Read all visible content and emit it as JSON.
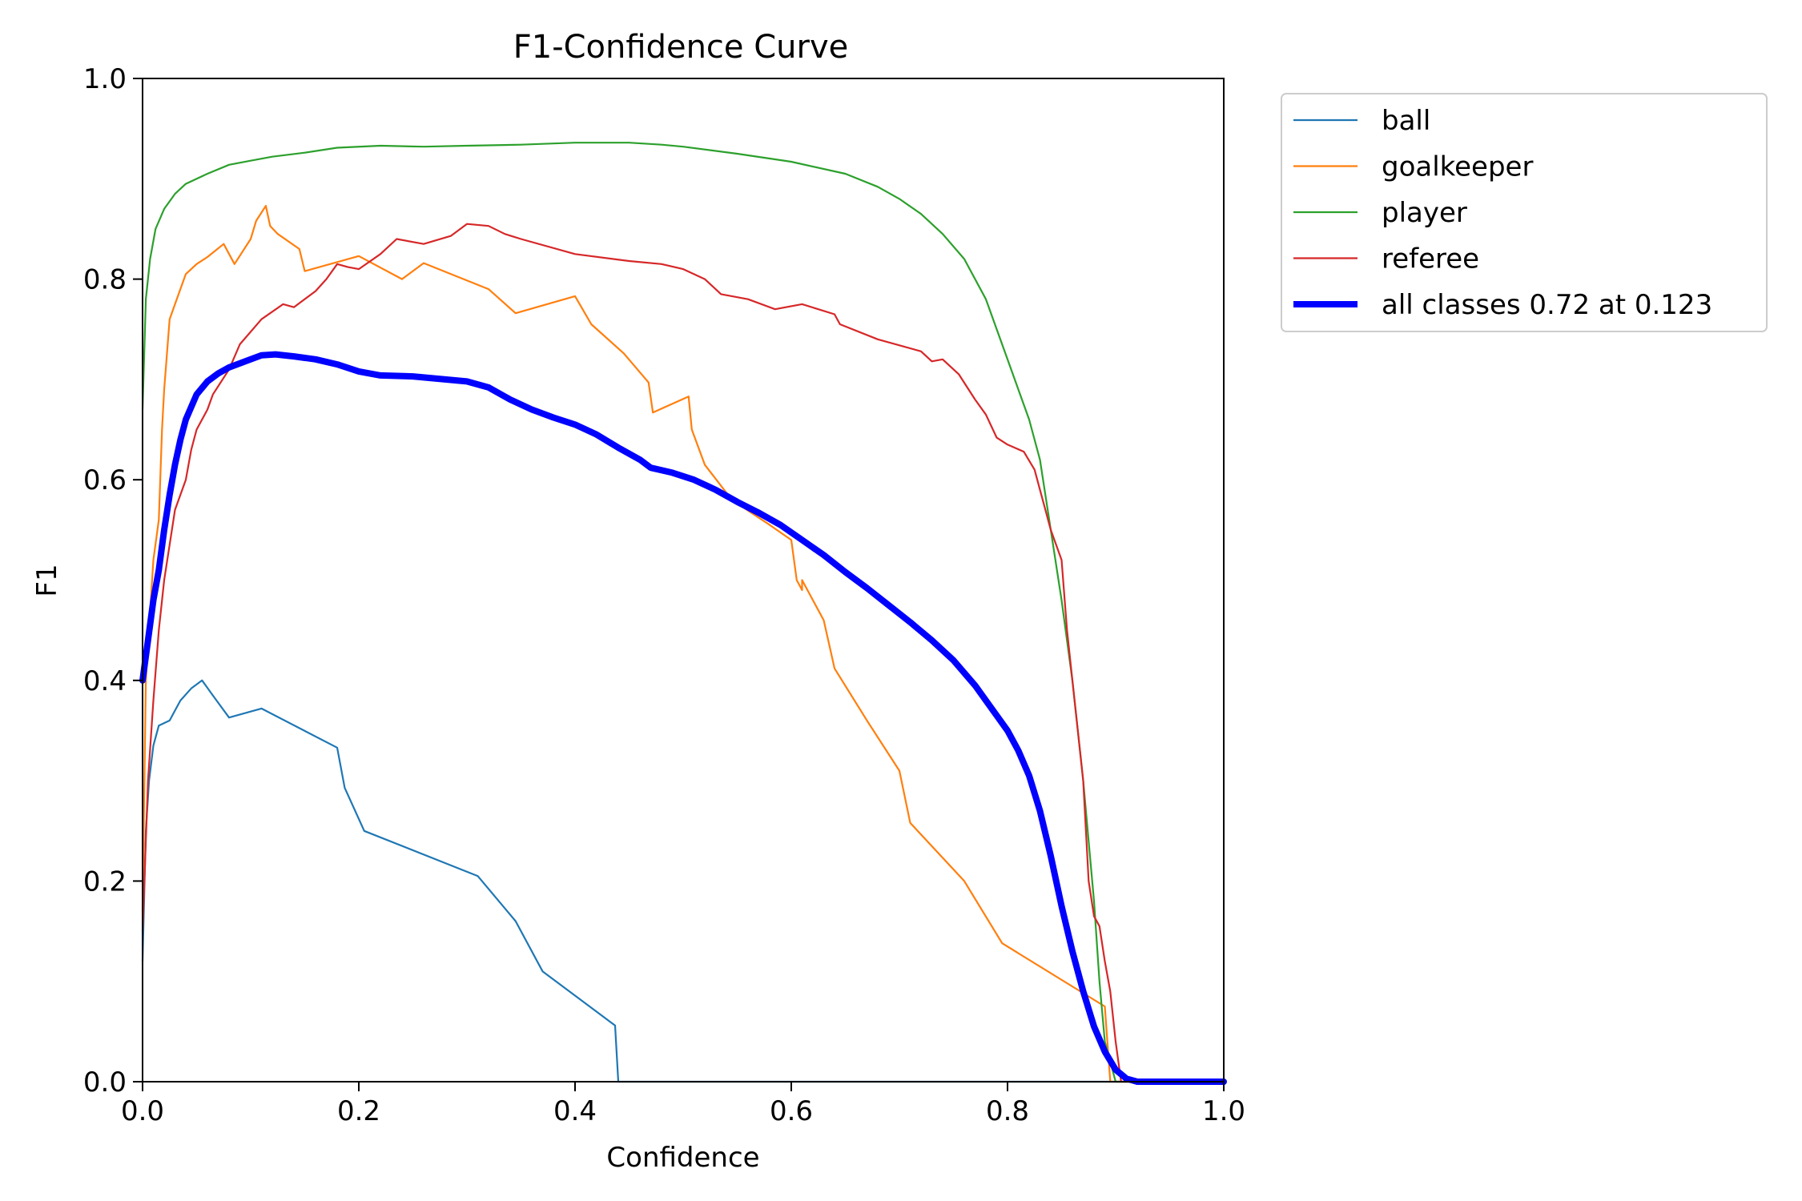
{
  "chart_data": {
    "type": "line",
    "title": "F1-Confidence Curve",
    "xlabel": "Confidence",
    "ylabel": "F1",
    "xlim": [
      0.0,
      1.0
    ],
    "ylim": [
      0.0,
      1.0
    ],
    "xticks": [
      "0.0",
      "0.2",
      "0.4",
      "0.6",
      "0.8",
      "1.0"
    ],
    "yticks": [
      "0.0",
      "0.2",
      "0.4",
      "0.6",
      "0.8",
      "1.0"
    ],
    "grid": false,
    "legend_position": "outside top-right",
    "series": [
      {
        "name": "ball",
        "color": "#1f77b4",
        "width": "thin",
        "points": [
          [
            0.0,
            0.12
          ],
          [
            0.003,
            0.25
          ],
          [
            0.006,
            0.3
          ],
          [
            0.01,
            0.335
          ],
          [
            0.015,
            0.355
          ],
          [
            0.025,
            0.36
          ],
          [
            0.03,
            0.37
          ],
          [
            0.035,
            0.38
          ],
          [
            0.045,
            0.392
          ],
          [
            0.055,
            0.4
          ],
          [
            0.065,
            0.385
          ],
          [
            0.08,
            0.363
          ],
          [
            0.11,
            0.372
          ],
          [
            0.18,
            0.333
          ],
          [
            0.187,
            0.293
          ],
          [
            0.205,
            0.25
          ],
          [
            0.31,
            0.205
          ],
          [
            0.345,
            0.16
          ],
          [
            0.37,
            0.11
          ],
          [
            0.437,
            0.056
          ],
          [
            0.44,
            0.0
          ],
          [
            0.895,
            0.0
          ],
          [
            1.0,
            0.0
          ]
        ]
      },
      {
        "name": "goalkeeper",
        "color": "#ff7f0e",
        "width": "thin",
        "points": [
          [
            0.0,
            0.17
          ],
          [
            0.003,
            0.4
          ],
          [
            0.01,
            0.52
          ],
          [
            0.015,
            0.56
          ],
          [
            0.018,
            0.65
          ],
          [
            0.02,
            0.69
          ],
          [
            0.025,
            0.76
          ],
          [
            0.03,
            0.775
          ],
          [
            0.04,
            0.805
          ],
          [
            0.05,
            0.815
          ],
          [
            0.06,
            0.822
          ],
          [
            0.075,
            0.835
          ],
          [
            0.085,
            0.815
          ],
          [
            0.1,
            0.84
          ],
          [
            0.105,
            0.858
          ],
          [
            0.114,
            0.873
          ],
          [
            0.118,
            0.853
          ],
          [
            0.125,
            0.845
          ],
          [
            0.145,
            0.83
          ],
          [
            0.15,
            0.808
          ],
          [
            0.2,
            0.823
          ],
          [
            0.24,
            0.8
          ],
          [
            0.26,
            0.816
          ],
          [
            0.32,
            0.79
          ],
          [
            0.345,
            0.766
          ],
          [
            0.4,
            0.783
          ],
          [
            0.415,
            0.755
          ],
          [
            0.445,
            0.726
          ],
          [
            0.468,
            0.697
          ],
          [
            0.472,
            0.667
          ],
          [
            0.505,
            0.683
          ],
          [
            0.508,
            0.65
          ],
          [
            0.52,
            0.615
          ],
          [
            0.545,
            0.58
          ],
          [
            0.58,
            0.555
          ],
          [
            0.6,
            0.54
          ],
          [
            0.605,
            0.5
          ],
          [
            0.61,
            0.49
          ],
          [
            0.61,
            0.5
          ],
          [
            0.63,
            0.46
          ],
          [
            0.64,
            0.412
          ],
          [
            0.67,
            0.36
          ],
          [
            0.7,
            0.31
          ],
          [
            0.71,
            0.258
          ],
          [
            0.76,
            0.2
          ],
          [
            0.795,
            0.138
          ],
          [
            0.89,
            0.075
          ],
          [
            0.895,
            0.0
          ],
          [
            1.0,
            0.0
          ]
        ]
      },
      {
        "name": "player",
        "color": "#2ca02c",
        "width": "thin",
        "points": [
          [
            0.0,
            0.67
          ],
          [
            0.003,
            0.78
          ],
          [
            0.007,
            0.82
          ],
          [
            0.012,
            0.85
          ],
          [
            0.02,
            0.87
          ],
          [
            0.03,
            0.885
          ],
          [
            0.04,
            0.895
          ],
          [
            0.06,
            0.905
          ],
          [
            0.08,
            0.914
          ],
          [
            0.1,
            0.918
          ],
          [
            0.12,
            0.922
          ],
          [
            0.15,
            0.926
          ],
          [
            0.18,
            0.931
          ],
          [
            0.22,
            0.933
          ],
          [
            0.26,
            0.932
          ],
          [
            0.3,
            0.933
          ],
          [
            0.35,
            0.934
          ],
          [
            0.4,
            0.936
          ],
          [
            0.45,
            0.936
          ],
          [
            0.48,
            0.934
          ],
          [
            0.5,
            0.932
          ],
          [
            0.55,
            0.925
          ],
          [
            0.6,
            0.917
          ],
          [
            0.65,
            0.905
          ],
          [
            0.68,
            0.892
          ],
          [
            0.7,
            0.88
          ],
          [
            0.72,
            0.865
          ],
          [
            0.74,
            0.845
          ],
          [
            0.76,
            0.82
          ],
          [
            0.78,
            0.78
          ],
          [
            0.8,
            0.72
          ],
          [
            0.82,
            0.66
          ],
          [
            0.83,
            0.62
          ],
          [
            0.84,
            0.55
          ],
          [
            0.85,
            0.48
          ],
          [
            0.86,
            0.4
          ],
          [
            0.87,
            0.3
          ],
          [
            0.88,
            0.18
          ],
          [
            0.885,
            0.1
          ],
          [
            0.89,
            0.04
          ],
          [
            0.895,
            0.02
          ],
          [
            0.9,
            0.0
          ],
          [
            1.0,
            0.0
          ]
        ]
      },
      {
        "name": "referee",
        "color": "#d62728",
        "width": "thin",
        "points": [
          [
            0.0,
            0.15
          ],
          [
            0.005,
            0.3
          ],
          [
            0.01,
            0.38
          ],
          [
            0.015,
            0.45
          ],
          [
            0.02,
            0.5
          ],
          [
            0.03,
            0.57
          ],
          [
            0.04,
            0.6
          ],
          [
            0.045,
            0.63
          ],
          [
            0.05,
            0.65
          ],
          [
            0.06,
            0.67
          ],
          [
            0.065,
            0.685
          ],
          [
            0.08,
            0.71
          ],
          [
            0.09,
            0.735
          ],
          [
            0.11,
            0.76
          ],
          [
            0.13,
            0.775
          ],
          [
            0.14,
            0.772
          ],
          [
            0.16,
            0.788
          ],
          [
            0.17,
            0.8
          ],
          [
            0.18,
            0.815
          ],
          [
            0.19,
            0.812
          ],
          [
            0.2,
            0.81
          ],
          [
            0.22,
            0.825
          ],
          [
            0.235,
            0.84
          ],
          [
            0.26,
            0.835
          ],
          [
            0.285,
            0.843
          ],
          [
            0.3,
            0.855
          ],
          [
            0.32,
            0.853
          ],
          [
            0.335,
            0.845
          ],
          [
            0.35,
            0.84
          ],
          [
            0.4,
            0.825
          ],
          [
            0.45,
            0.818
          ],
          [
            0.48,
            0.815
          ],
          [
            0.5,
            0.81
          ],
          [
            0.52,
            0.8
          ],
          [
            0.535,
            0.785
          ],
          [
            0.56,
            0.78
          ],
          [
            0.585,
            0.77
          ],
          [
            0.61,
            0.775
          ],
          [
            0.64,
            0.765
          ],
          [
            0.645,
            0.755
          ],
          [
            0.68,
            0.74
          ],
          [
            0.72,
            0.728
          ],
          [
            0.73,
            0.718
          ],
          [
            0.74,
            0.72
          ],
          [
            0.755,
            0.705
          ],
          [
            0.77,
            0.68
          ],
          [
            0.78,
            0.665
          ],
          [
            0.79,
            0.642
          ],
          [
            0.8,
            0.635
          ],
          [
            0.815,
            0.628
          ],
          [
            0.825,
            0.61
          ],
          [
            0.83,
            0.59
          ],
          [
            0.835,
            0.57
          ],
          [
            0.84,
            0.55
          ],
          [
            0.85,
            0.52
          ],
          [
            0.855,
            0.45
          ],
          [
            0.86,
            0.4
          ],
          [
            0.865,
            0.35
          ],
          [
            0.87,
            0.3
          ],
          [
            0.875,
            0.2
          ],
          [
            0.88,
            0.165
          ],
          [
            0.885,
            0.155
          ],
          [
            0.89,
            0.12
          ],
          [
            0.895,
            0.09
          ],
          [
            0.9,
            0.04
          ],
          [
            0.905,
            0.0
          ],
          [
            1.0,
            0.0
          ]
        ]
      },
      {
        "name": "all classes 0.72 at 0.123",
        "color": "#0000ff",
        "width": "thick",
        "points": [
          [
            0.0,
            0.4
          ],
          [
            0.005,
            0.44
          ],
          [
            0.01,
            0.48
          ],
          [
            0.015,
            0.51
          ],
          [
            0.02,
            0.55
          ],
          [
            0.025,
            0.585
          ],
          [
            0.03,
            0.615
          ],
          [
            0.035,
            0.64
          ],
          [
            0.04,
            0.66
          ],
          [
            0.05,
            0.685
          ],
          [
            0.06,
            0.698
          ],
          [
            0.07,
            0.706
          ],
          [
            0.08,
            0.712
          ],
          [
            0.1,
            0.72
          ],
          [
            0.11,
            0.724
          ],
          [
            0.123,
            0.725
          ],
          [
            0.14,
            0.723
          ],
          [
            0.16,
            0.72
          ],
          [
            0.18,
            0.715
          ],
          [
            0.2,
            0.708
          ],
          [
            0.22,
            0.704
          ],
          [
            0.25,
            0.703
          ],
          [
            0.28,
            0.7
          ],
          [
            0.3,
            0.698
          ],
          [
            0.32,
            0.692
          ],
          [
            0.34,
            0.68
          ],
          [
            0.36,
            0.67
          ],
          [
            0.38,
            0.662
          ],
          [
            0.4,
            0.655
          ],
          [
            0.42,
            0.645
          ],
          [
            0.44,
            0.632
          ],
          [
            0.46,
            0.62
          ],
          [
            0.47,
            0.612
          ],
          [
            0.49,
            0.607
          ],
          [
            0.51,
            0.6
          ],
          [
            0.53,
            0.59
          ],
          [
            0.55,
            0.578
          ],
          [
            0.57,
            0.567
          ],
          [
            0.59,
            0.555
          ],
          [
            0.61,
            0.54
          ],
          [
            0.63,
            0.525
          ],
          [
            0.65,
            0.508
          ],
          [
            0.67,
            0.492
          ],
          [
            0.69,
            0.475
          ],
          [
            0.71,
            0.458
          ],
          [
            0.73,
            0.44
          ],
          [
            0.75,
            0.42
          ],
          [
            0.77,
            0.395
          ],
          [
            0.79,
            0.365
          ],
          [
            0.8,
            0.35
          ],
          [
            0.81,
            0.33
          ],
          [
            0.82,
            0.305
          ],
          [
            0.83,
            0.27
          ],
          [
            0.84,
            0.225
          ],
          [
            0.85,
            0.175
          ],
          [
            0.86,
            0.13
          ],
          [
            0.87,
            0.09
          ],
          [
            0.88,
            0.055
          ],
          [
            0.89,
            0.03
          ],
          [
            0.9,
            0.012
          ],
          [
            0.91,
            0.003
          ],
          [
            0.92,
            0.0
          ],
          [
            1.0,
            0.0
          ]
        ]
      }
    ]
  }
}
